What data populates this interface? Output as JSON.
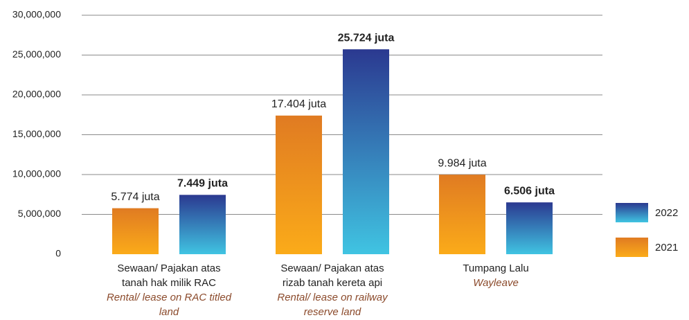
{
  "chart_data": {
    "type": "bar",
    "categories": [
      {
        "label": [
          "Sewaan/ Pajakan atas",
          "tanah hak milik RAC"
        ],
        "translation": [
          "Rental/ lease on RAC titled",
          "land"
        ]
      },
      {
        "label": [
          "Sewaan/ Pajakan atas",
          "rizab tanah kereta api"
        ],
        "translation": [
          "Rental/ lease on railway",
          "reserve land"
        ]
      },
      {
        "label": [
          "Tumpang Lalu"
        ],
        "translation": [
          "Wayleave"
        ]
      }
    ],
    "series": [
      {
        "name": "2021",
        "color": [
          "#e07b22",
          "#fbab19"
        ],
        "values": [
          5774000,
          17404000,
          9984000
        ],
        "value_labels": [
          "5.774 juta",
          "17.404 juta",
          "9.984 juta"
        ],
        "label_weight": "normal"
      },
      {
        "name": "2022",
        "color": [
          "#2b3990",
          "#40c4e2"
        ],
        "values": [
          7449000,
          25724000,
          6506000
        ],
        "value_labels": [
          "7.449 juta",
          "25.724 juta",
          "6.506 juta"
        ],
        "label_weight": "bold"
      }
    ],
    "ylim": [
      0,
      30000000
    ],
    "yticks": [
      0,
      {
        "value": 5000000,
        "label": "5,000,000"
      },
      {
        "value": 10000000,
        "label": "10,000,000"
      },
      {
        "value": 15000000,
        "label": "15,000,000"
      },
      {
        "value": 20000000,
        "label": "20,000,000"
      },
      {
        "value": 25000000,
        "label": "25,000,000"
      },
      {
        "value": 30000000,
        "label": "30,000,000"
      }
    ],
    "grid": true,
    "legend": "right"
  }
}
